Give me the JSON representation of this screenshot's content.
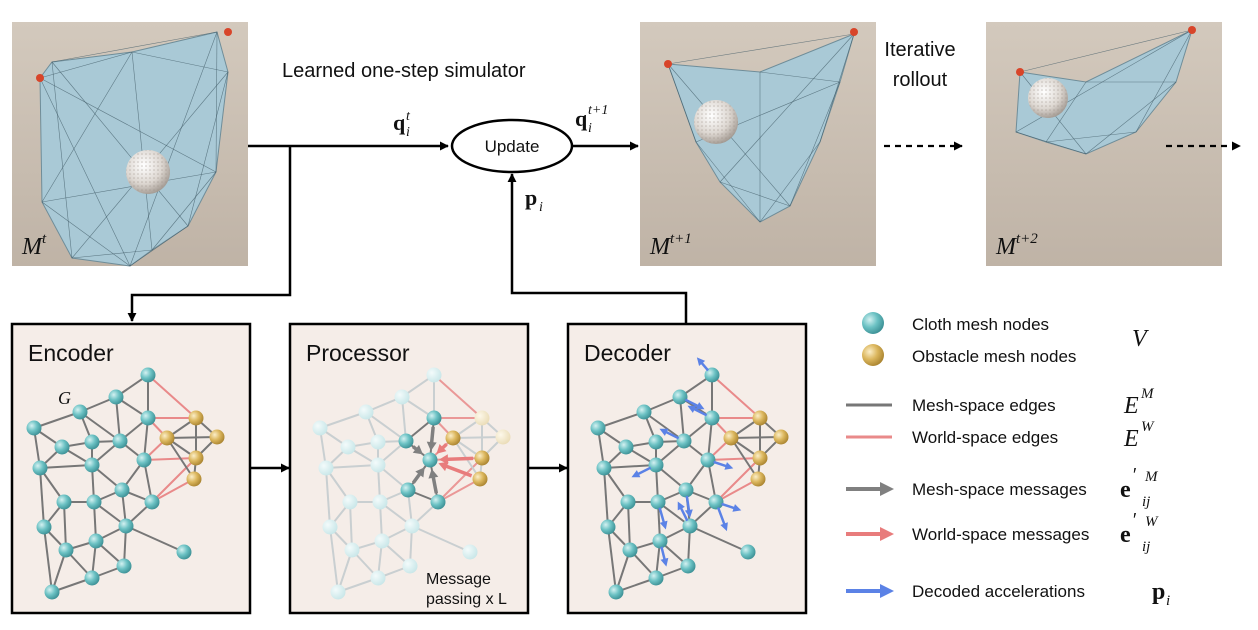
{
  "top": {
    "simulator_label": "Learned one-step simulator",
    "update_label": "Update",
    "rollout_line1": "Iterative",
    "rollout_line2": "rollout"
  },
  "frames": [
    {
      "label_base": "M",
      "label_sup": "t"
    },
    {
      "label_base": "M",
      "label_sup": "t+1"
    },
    {
      "label_base": "M",
      "label_sup": "t+2"
    }
  ],
  "symbols": {
    "q_in": {
      "base": "q",
      "sub": "i",
      "sup": "t"
    },
    "q_out": {
      "base": "q",
      "sub": "i",
      "sup": "t+1"
    },
    "p": {
      "base": "p",
      "sub": "i"
    }
  },
  "stages": {
    "encoder": {
      "title": "Encoder",
      "graph_label": "G"
    },
    "processor": {
      "title": "Processor",
      "note_line1": "Message",
      "note_line2": "passing x L"
    },
    "decoder": {
      "title": "Decoder"
    }
  },
  "legend": {
    "cloth_nodes": "Cloth mesh nodes",
    "obstacle_nodes": "Obstacle mesh nodes",
    "node_symbol": "V",
    "mesh_edges": "Mesh-space edges",
    "mesh_edges_symbol": {
      "base": "E",
      "sup": "M"
    },
    "world_edges": "World-space edges",
    "world_edges_symbol": {
      "base": "E",
      "sup": "W"
    },
    "mesh_messages": "Mesh-space messages",
    "mesh_messages_symbol": {
      "base": "e",
      "prime": "′",
      "sub": "ij",
      "sup": "M"
    },
    "world_messages": "World-space messages",
    "world_messages_symbol": {
      "base": "e",
      "prime": "′",
      "sub": "ij",
      "sup": "W"
    },
    "decoded_acc": "Decoded accelerations",
    "decoded_acc_symbol": {
      "base": "p",
      "sub": "i"
    }
  },
  "colors": {
    "cloth_node": "#5fbcbf",
    "obstacle_node": "#d9b45a",
    "mesh_edge": "#777777",
    "world_edge": "#e98a8a",
    "mesh_message": "#808080",
    "world_message": "#e87c7c",
    "decoded_acc": "#5b82e6",
    "panel_bg": "#f5ede8",
    "frame_bg": "#c9bfb4",
    "cloth": "#a9c9d6"
  }
}
